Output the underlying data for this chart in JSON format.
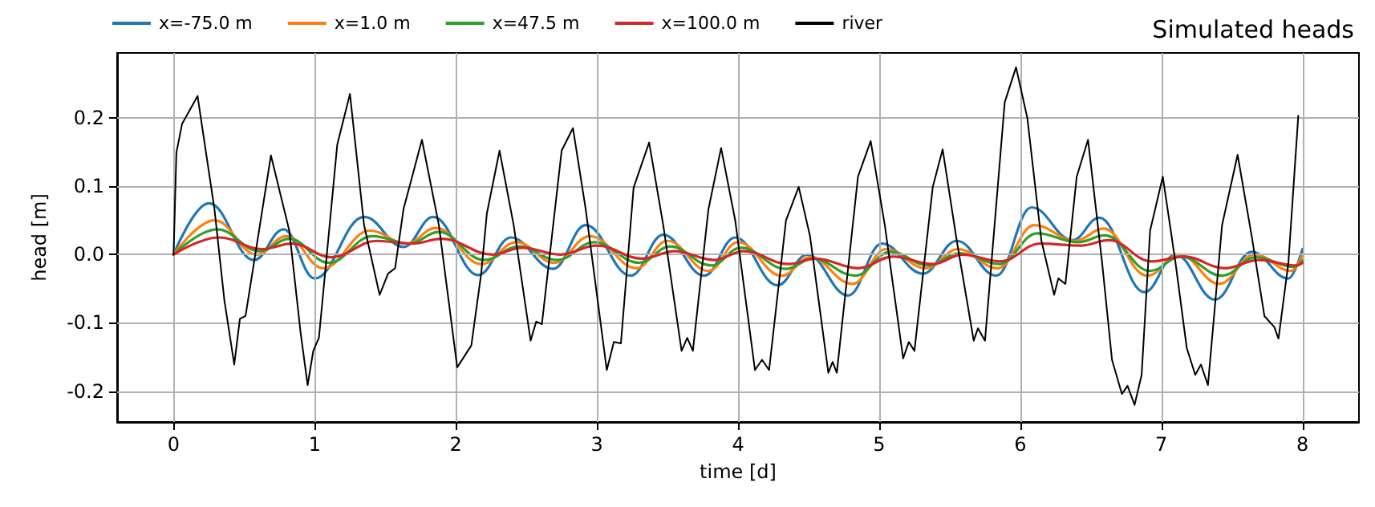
{
  "chart_data": {
    "type": "line",
    "title": "Simulated heads",
    "xlabel": "time [d]",
    "ylabel": "head [m]",
    "xlim": [
      -0.4,
      8.4
    ],
    "xticks": [
      0,
      1,
      2,
      3,
      4,
      5,
      6,
      7,
      8
    ],
    "ylim": [
      -0.245,
      0.295
    ],
    "yticks": [
      -0.2,
      -0.1,
      {
        "value": 0,
        "label": "0.0"
      },
      0.1,
      0.2
    ],
    "grid": true,
    "legend": "top left",
    "series": [
      {
        "name": "x=-75.0 m",
        "color": "#1f77b4",
        "x": [
          0,
          0.25,
          0.57,
          0.78,
          1.0,
          1.35,
          1.63,
          1.84,
          2.16,
          2.39,
          2.69,
          2.92,
          3.24,
          3.47,
          3.76,
          3.98,
          4.28,
          4.49,
          4.78,
          5.02,
          5.31,
          5.55,
          5.83,
          6.08,
          6.37,
          6.56,
          6.88,
          7.1,
          7.38,
          7.64,
          7.9,
          8.0
        ],
        "values": [
          0,
          0.075,
          -0.008,
          0.037,
          -0.035,
          0.055,
          0.011,
          0.055,
          -0.03,
          0.025,
          -0.021,
          0.043,
          -0.031,
          0.029,
          -0.031,
          0.025,
          -0.045,
          0,
          -0.06,
          0.016,
          -0.028,
          0.02,
          -0.031,
          0.069,
          0.021,
          0.054,
          -0.055,
          0,
          -0.066,
          0.004,
          -0.035,
          0.008
        ]
      },
      {
        "name": "x=1.0 m",
        "color": "#ff7f0e",
        "x": [
          0,
          0.29,
          0.59,
          0.8,
          1.06,
          1.39,
          1.65,
          1.86,
          2.18,
          2.43,
          2.7,
          2.95,
          3.28,
          3.5,
          3.79,
          4.0,
          4.31,
          4.51,
          4.81,
          5.05,
          5.33,
          5.56,
          5.84,
          6.1,
          6.39,
          6.59,
          6.9,
          7.13,
          7.41,
          7.66,
          7.92,
          8.0
        ],
        "values": [
          0,
          0.05,
          0,
          0.027,
          -0.02,
          0.035,
          0.016,
          0.039,
          -0.014,
          0.018,
          -0.012,
          0.027,
          -0.02,
          0.02,
          -0.024,
          0.018,
          -0.031,
          -0.004,
          -0.043,
          0.008,
          -0.02,
          0.008,
          -0.02,
          0.043,
          0.02,
          0.038,
          -0.031,
          0,
          -0.043,
          0,
          -0.024,
          0
        ]
      },
      {
        "name": "x=47.5 m",
        "color": "#2ca02c",
        "x": [
          0,
          0.31,
          0.61,
          0.82,
          1.1,
          1.41,
          1.67,
          1.88,
          2.2,
          2.45,
          2.72,
          2.98,
          3.3,
          3.52,
          3.81,
          4.02,
          4.34,
          4.53,
          4.83,
          5.08,
          5.35,
          5.57,
          5.85,
          6.12,
          6.41,
          6.6,
          6.92,
          7.14,
          7.43,
          7.67,
          7.94,
          8.0
        ],
        "values": [
          0,
          0.037,
          0.005,
          0.023,
          -0.012,
          0.027,
          0.016,
          0.033,
          -0.008,
          0.012,
          -0.008,
          0.018,
          -0.012,
          0.012,
          -0.016,
          0.01,
          -0.021,
          -0.006,
          -0.031,
          0.004,
          -0.016,
          0.002,
          -0.014,
          0.031,
          0.018,
          0.028,
          -0.024,
          -0.003,
          -0.031,
          -0.004,
          -0.018,
          -0.008
        ]
      },
      {
        "name": "x=100.0 m",
        "color": "#d62728",
        "x": [
          0,
          0.32,
          0.63,
          0.84,
          1.12,
          1.44,
          1.69,
          1.9,
          2.26,
          2.47,
          2.74,
          3.0,
          3.32,
          3.55,
          3.83,
          4.04,
          4.36,
          4.55,
          4.85,
          5.1,
          5.38,
          5.59,
          5.86,
          6.14,
          6.43,
          6.63,
          6.93,
          7.16,
          7.45,
          7.69,
          7.96,
          8.0
        ],
        "values": [
          0,
          0.025,
          0.008,
          0.016,
          -0.004,
          0.02,
          0.016,
          0.023,
          0,
          0.01,
          0,
          0.013,
          -0.006,
          0.005,
          -0.008,
          0.005,
          -0.014,
          -0.006,
          -0.02,
          -0.003,
          -0.014,
          0,
          -0.01,
          0.016,
          0.013,
          0.021,
          -0.01,
          -0.003,
          -0.02,
          -0.008,
          -0.016,
          -0.012
        ]
      },
      {
        "name": "river",
        "color": "#000000",
        "x": [
          0,
          0.02,
          0.06,
          0.17,
          0.29,
          0.36,
          0.43,
          0.47,
          0.51,
          0.69,
          0.82,
          0.9,
          0.95,
          0.99,
          1.03,
          1.16,
          1.25,
          1.35,
          1.46,
          1.52,
          1.57,
          1.63,
          1.76,
          1.88,
          2.01,
          2.11,
          2.18,
          2.22,
          2.31,
          2.41,
          2.53,
          2.57,
          2.61,
          2.75,
          2.83,
          2.92,
          3.07,
          3.12,
          3.17,
          3.26,
          3.37,
          3.47,
          3.6,
          3.64,
          3.68,
          3.79,
          3.88,
          3.98,
          4.12,
          4.17,
          4.22,
          4.34,
          4.43,
          4.51,
          4.64,
          4.67,
          4.7,
          4.85,
          4.94,
          5.04,
          5.17,
          5.21,
          5.25,
          5.38,
          5.45,
          5.55,
          5.67,
          5.7,
          5.75,
          5.89,
          5.97,
          6.05,
          6.15,
          6.24,
          6.27,
          6.32,
          6.4,
          6.48,
          6.58,
          6.65,
          6.72,
          6.76,
          6.81,
          6.86,
          6.92,
          7.01,
          7.1,
          7.18,
          7.24,
          7.28,
          7.33,
          7.43,
          7.54,
          7.64,
          7.73,
          7.8,
          7.83,
          7.9,
          7.97
        ],
        "values": [
          0,
          0.149,
          0.191,
          0.232,
          0.066,
          -0.067,
          -0.161,
          -0.094,
          -0.09,
          0.145,
          0.035,
          -0.114,
          -0.191,
          -0.141,
          -0.122,
          0.161,
          0.235,
          0.043,
          -0.059,
          -0.028,
          -0.02,
          0.067,
          0.168,
          0.043,
          -0.165,
          -0.133,
          -0.028,
          0.06,
          0.152,
          0.043,
          -0.126,
          -0.098,
          -0.102,
          0.152,
          0.185,
          0.067,
          -0.169,
          -0.128,
          -0.13,
          0.098,
          0.164,
          0.043,
          -0.141,
          -0.122,
          -0.141,
          0.066,
          0.156,
          0.05,
          -0.169,
          -0.154,
          -0.169,
          0.05,
          0.099,
          0.027,
          -0.173,
          -0.157,
          -0.173,
          0.114,
          0.166,
          0.043,
          -0.152,
          -0.128,
          -0.141,
          0.099,
          0.154,
          0.02,
          -0.126,
          -0.108,
          -0.126,
          0.223,
          0.274,
          0.2,
          0.02,
          -0.059,
          -0.035,
          -0.043,
          0.114,
          0.168,
          -0.012,
          -0.154,
          -0.204,
          -0.192,
          -0.22,
          -0.176,
          0.035,
          0.114,
          -0.012,
          -0.137,
          -0.176,
          -0.161,
          -0.191,
          0.043,
          0.146,
          0.027,
          -0.09,
          -0.106,
          -0.123,
          -0.012,
          0.203
        ]
      }
    ]
  }
}
